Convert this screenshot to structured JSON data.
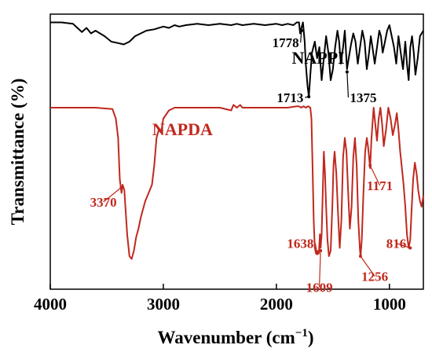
{
  "chart_data": {
    "type": "line",
    "title": "",
    "xlabel": "Wavenumber (cm",
    "xlabel_sup": "−1",
    "xlabel_close": ")",
    "ylabel": "Transmittance (%)",
    "xlim": [
      4000,
      700
    ],
    "x_reversed": true,
    "ylim": [
      0,
      100
    ],
    "y_ticks_shown": false,
    "grid": false,
    "x_ticks": [
      {
        "value": 4000,
        "label": "4000"
      },
      {
        "value": 3000,
        "label": "3000"
      },
      {
        "value": 2000,
        "label": "2000"
      },
      {
        "value": 1000,
        "label": "1000"
      }
    ],
    "series": [
      {
        "name": "NAPPI",
        "color": "#000000",
        "x": [
          4000,
          3900,
          3800,
          3720,
          3680,
          3640,
          3600,
          3520,
          3460,
          3400,
          3350,
          3300,
          3250,
          3200,
          3150,
          3080,
          3000,
          2950,
          2900,
          2860,
          2800,
          2700,
          2600,
          2500,
          2400,
          2350,
          2300,
          2200,
          2100,
          2000,
          1950,
          1900,
          1850,
          1820,
          1800,
          1790,
          1778,
          1765,
          1750,
          1740,
          1725,
          1713,
          1700,
          1685,
          1660,
          1640,
          1620,
          1600,
          1580,
          1560,
          1540,
          1520,
          1500,
          1480,
          1460,
          1445,
          1430,
          1410,
          1395,
          1375,
          1360,
          1340,
          1320,
          1300,
          1280,
          1260,
          1240,
          1220,
          1200,
          1180,
          1165,
          1150,
          1130,
          1110,
          1090,
          1075,
          1060,
          1040,
          1020,
          1000,
          980,
          960,
          940,
          920,
          900,
          880,
          860,
          845,
          830,
          815,
          800,
          785,
          770,
          750,
          730,
          700
        ],
        "y": [
          97,
          97,
          96.5,
          93.5,
          95,
          93,
          94,
          92,
          90,
          89.5,
          89,
          90,
          92,
          93,
          94,
          94.5,
          95.5,
          95,
          96,
          95.5,
          96,
          96.5,
          96,
          96.5,
          96,
          96.5,
          96,
          96.5,
          96,
          96.5,
          96,
          96.5,
          96,
          97,
          97,
          93,
          95,
          97,
          90,
          82,
          74,
          70,
          78,
          86,
          90,
          84,
          88,
          76,
          84,
          92,
          86,
          76,
          80,
          88,
          94,
          90,
          82,
          88,
          94,
          80,
          84,
          89,
          93,
          90,
          82,
          88,
          94,
          90,
          80,
          86,
          92,
          88,
          82,
          88,
          94,
          92,
          86,
          90,
          94,
          96,
          92,
          88,
          82,
          92,
          86,
          80,
          90,
          82,
          76,
          88,
          92,
          86,
          78,
          84,
          92,
          94
        ]
      },
      {
        "name": "NAPDA",
        "color": "#c0281e",
        "x": [
          4000,
          3800,
          3600,
          3450,
          3420,
          3400,
          3385,
          3370,
          3360,
          3345,
          3320,
          3300,
          3280,
          3260,
          3240,
          3220,
          3200,
          3180,
          3160,
          3140,
          3120,
          3100,
          3080,
          3060,
          3040,
          3020,
          3000,
          2950,
          2900,
          2800,
          2700,
          2600,
          2500,
          2400,
          2380,
          2350,
          2320,
          2300,
          2200,
          2100,
          2000,
          1900,
          1820,
          1800,
          1780,
          1760,
          1740,
          1720,
          1700,
          1690,
          1680,
          1670,
          1660,
          1650,
          1640,
          1625,
          1615,
          1609,
          1600,
          1590,
          1580,
          1570,
          1560,
          1548,
          1535,
          1520,
          1505,
          1495,
          1485,
          1470,
          1455,
          1440,
          1425,
          1410,
          1395,
          1380,
          1365,
          1350,
          1335,
          1320,
          1305,
          1290,
          1275,
          1262,
          1256,
          1245,
          1230,
          1215,
          1200,
          1190,
          1180,
          1171,
          1160,
          1150,
          1140,
          1125,
          1110,
          1095,
          1080,
          1065,
          1050,
          1030,
          1010,
          990,
          970,
          950,
          935,
          920,
          905,
          890,
          875,
          860,
          845,
          830,
          816,
          805,
          790,
          775,
          760,
          745,
          730,
          715,
          700
        ],
        "y": [
          66,
          66,
          66,
          65.5,
          62,
          55,
          40,
          35,
          38,
          36,
          20,
          12,
          11,
          14,
          19,
          22,
          26,
          29,
          32,
          34,
          36,
          38,
          45,
          55,
          58,
          57,
          62,
          65,
          66,
          66,
          66,
          66,
          66,
          65,
          67,
          66,
          67,
          66,
          66,
          66,
          66,
          66,
          66.5,
          66.5,
          66,
          66.5,
          66,
          66.5,
          66,
          62,
          45,
          25,
          15,
          13,
          14,
          13,
          20,
          15,
          20,
          35,
          50,
          42,
          30,
          18,
          12,
          14,
          30,
          45,
          50,
          42,
          28,
          15,
          25,
          48,
          55,
          50,
          35,
          22,
          30,
          48,
          55,
          45,
          25,
          15,
          12,
          18,
          35,
          50,
          55,
          52,
          48,
          44,
          54,
          60,
          66,
          60,
          54,
          62,
          66,
          60,
          52,
          58,
          66,
          62,
          56,
          60,
          64,
          58,
          50,
          44,
          38,
          30,
          20,
          15,
          18,
          28,
          40,
          46,
          42,
          36,
          32,
          30,
          34
        ]
      }
    ],
    "annotations": [
      {
        "text": "NAPPI",
        "class": "series-label",
        "color": "#000000",
        "x": 1630,
        "y": 82,
        "anchor": "middle"
      },
      {
        "text": "NAPDA",
        "class": "series-label",
        "color": "#c0281e",
        "x": 2830,
        "y": 56,
        "anchor": "middle"
      },
      {
        "text": "1778",
        "class": "ann",
        "color": "#000000",
        "x": 1800,
        "y": 88,
        "anchor": "end",
        "arrow_to": [
          1778,
          94
        ]
      },
      {
        "text": "1713",
        "class": "ann",
        "color": "#000000",
        "x": 1760,
        "y": 68,
        "anchor": "end",
        "arrow_to": [
          1713,
          70
        ]
      },
      {
        "text": "1375",
        "class": "ann",
        "color": "#000000",
        "x": 1350,
        "y": 68,
        "anchor": "start",
        "arrow_to": [
          1375,
          79
        ]
      },
      {
        "text": "3370",
        "class": "ann",
        "color": "#c0281e",
        "x": 3530,
        "y": 30,
        "anchor": "middle",
        "arrow_to": [
          3372,
          37
        ]
      },
      {
        "text": "1638",
        "class": "ann",
        "color": "#c0281e",
        "x": 1670,
        "y": 15,
        "anchor": "end",
        "arrow_to": [
          1640,
          13
        ]
      },
      {
        "text": "1609",
        "class": "ann",
        "color": "#c0281e",
        "x": 1620,
        "y": -1,
        "anchor": "middle",
        "arrow_to": [
          1609,
          14
        ]
      },
      {
        "text": "1171",
        "class": "ann",
        "color": "#c0281e",
        "x": 1085,
        "y": 36,
        "anchor": "middle",
        "arrow_to": [
          1171,
          45
        ]
      },
      {
        "text": "816",
        "class": "ann",
        "color": "#c0281e",
        "x": 940,
        "y": 15,
        "anchor": "middle",
        "arrow_to": [
          816,
          15
        ]
      },
      {
        "text": "1256",
        "class": "ann",
        "color": "#c0281e",
        "x": 1130,
        "y": 3,
        "anchor": "middle",
        "arrow_to": [
          1256,
          12
        ]
      }
    ]
  }
}
